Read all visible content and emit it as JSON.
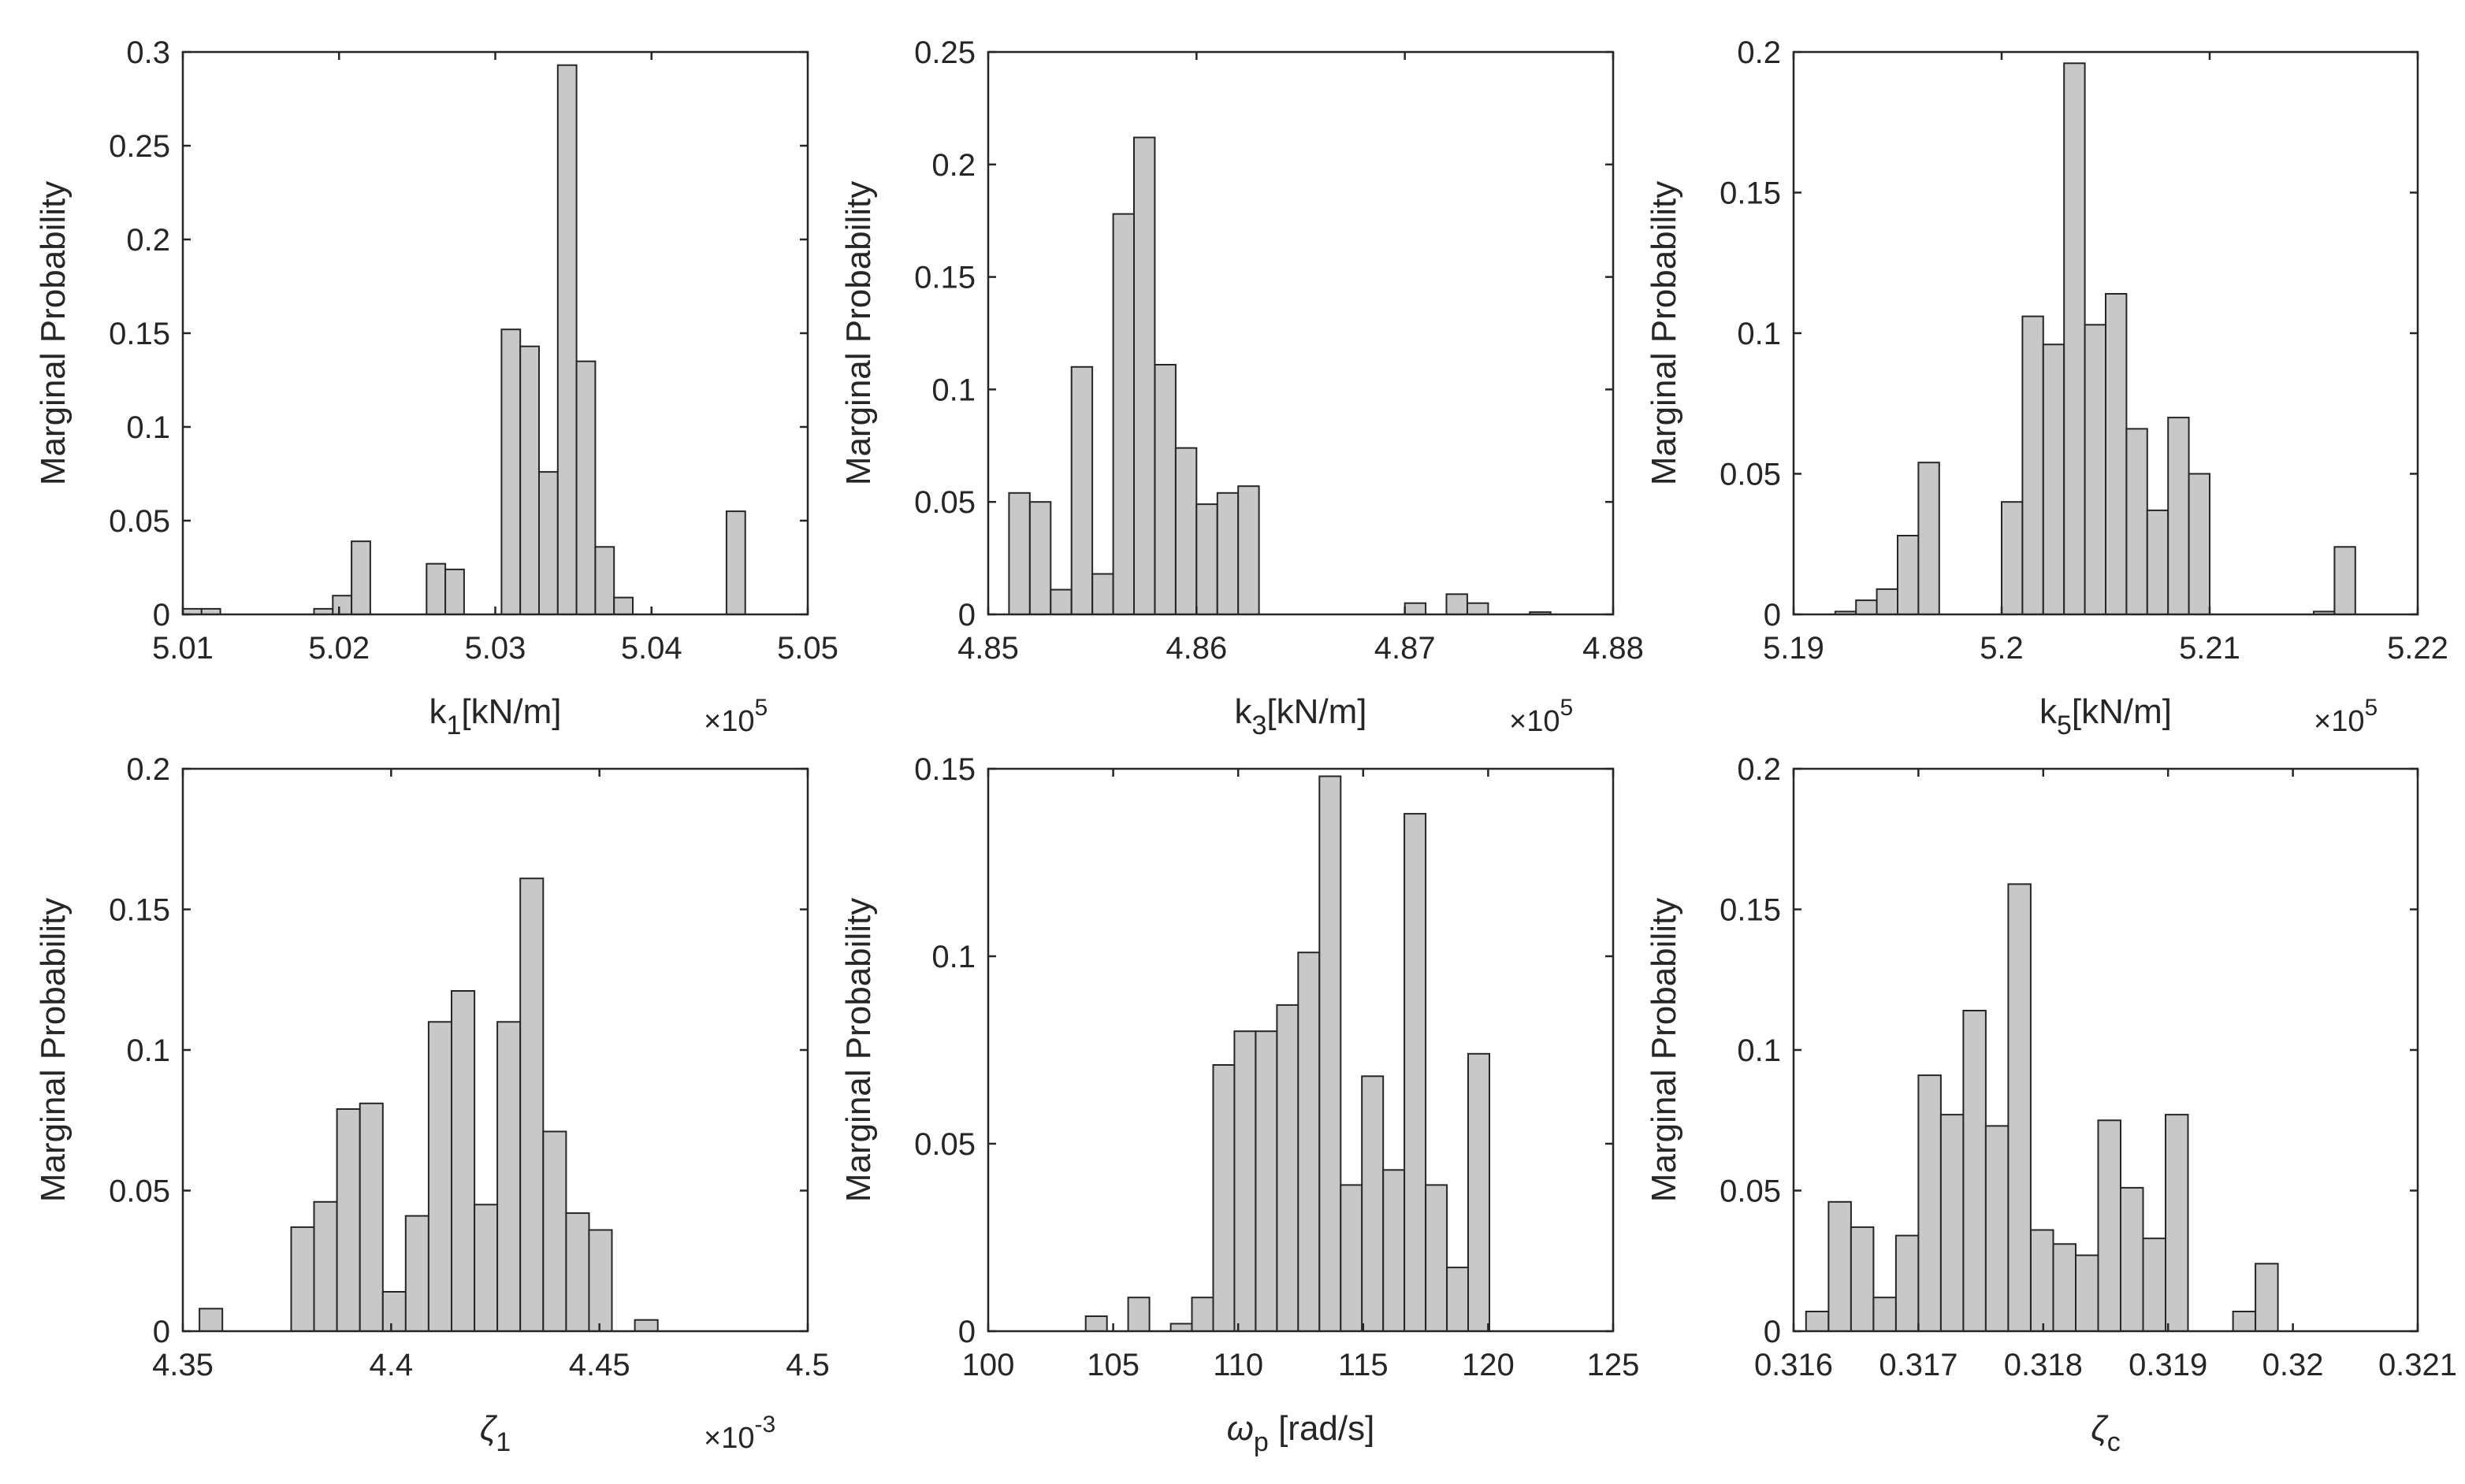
{
  "chart_data": [
    {
      "type": "bar",
      "ylabel": "Marginal Probability",
      "xlabel_main": "k",
      "xlabel_sub": "1",
      "xlabel_rest": "[kN/m]",
      "xlabel_italic": false,
      "multiplier_base": "×10",
      "multiplier_exp": "5",
      "xlim": [
        5.01,
        5.05
      ],
      "ylim": [
        0,
        0.3
      ],
      "xticks": [
        5.01,
        5.02,
        5.03,
        5.04,
        5.05
      ],
      "xtick_labels": [
        "5.01",
        "5.02",
        "5.03",
        "5.04",
        "5.05"
      ],
      "yticks": [
        0,
        0.05,
        0.1,
        0.15,
        0.2,
        0.25,
        0.3
      ],
      "ytick_labels": [
        "0",
        "0.05",
        "0.1",
        "0.15",
        "0.2",
        "0.25",
        "0.3"
      ],
      "bin_edges": [
        5.01,
        5.0112,
        5.0124,
        5.0136,
        5.0148,
        5.016,
        5.0172,
        5.0184,
        5.0196,
        5.0208,
        5.022,
        5.0232,
        5.0244,
        5.0256,
        5.0268,
        5.028,
        5.0292,
        5.0304,
        5.0316,
        5.0328,
        5.034,
        5.0352,
        5.0364,
        5.0376,
        5.0388,
        5.04,
        5.0412,
        5.0424,
        5.0436,
        5.0448,
        5.046
      ],
      "values": [
        0.003,
        0.003,
        0,
        0,
        0,
        0,
        0,
        0.003,
        0.01,
        0.039,
        0,
        0,
        0,
        0.027,
        0.024,
        0,
        0,
        0.152,
        0.143,
        0.076,
        0.293,
        0.135,
        0.036,
        0.009,
        0,
        0,
        0,
        0,
        0,
        0.055
      ]
    },
    {
      "type": "bar",
      "ylabel": "Marginal Probability",
      "xlabel_main": "k",
      "xlabel_sub": "3",
      "xlabel_rest": "[kN/m]",
      "xlabel_italic": false,
      "multiplier_base": "×10",
      "multiplier_exp": "5",
      "xlim": [
        4.85,
        4.88
      ],
      "ylim": [
        0,
        0.25
      ],
      "xticks": [
        4.85,
        4.86,
        4.87,
        4.88
      ],
      "xtick_labels": [
        "4.85",
        "4.86",
        "4.87",
        "4.88"
      ],
      "yticks": [
        0,
        0.05,
        0.1,
        0.15,
        0.2,
        0.25
      ],
      "ytick_labels": [
        "0",
        "0.05",
        "0.1",
        "0.15",
        "0.2",
        "0.25"
      ],
      "bin_edges": [
        4.851,
        4.852,
        4.853,
        4.854,
        4.855,
        4.856,
        4.857,
        4.858,
        4.859,
        4.86,
        4.861,
        4.862,
        4.863,
        4.864,
        4.865,
        4.866,
        4.867,
        4.868,
        4.869,
        4.87,
        4.871,
        4.872,
        4.873,
        4.874,
        4.875,
        4.876,
        4.877,
        4.878
      ],
      "values": [
        0.054,
        0.05,
        0.011,
        0.11,
        0.018,
        0.178,
        0.212,
        0.111,
        0.074,
        0.049,
        0.054,
        0.057,
        0,
        0,
        0,
        0,
        0,
        0,
        0,
        0.005,
        0,
        0.009,
        0.005,
        0,
        0,
        0.001,
        0
      ]
    },
    {
      "type": "bar",
      "ylabel": "Marginal Probability",
      "xlabel_main": "k",
      "xlabel_sub": "5",
      "xlabel_rest": "[kN/m]",
      "xlabel_italic": false,
      "multiplier_base": "×10",
      "multiplier_exp": "5",
      "xlim": [
        5.19,
        5.22
      ],
      "ylim": [
        0,
        0.2
      ],
      "xticks": [
        5.19,
        5.2,
        5.21,
        5.22
      ],
      "xtick_labels": [
        "5.19",
        "5.2",
        "5.21",
        "5.22"
      ],
      "yticks": [
        0,
        0.05,
        0.1,
        0.15,
        0.2
      ],
      "ytick_labels": [
        "0",
        "0.05",
        "0.1",
        "0.15",
        "0.2"
      ],
      "bin_edges": [
        5.192,
        5.193,
        5.194,
        5.195,
        5.196,
        5.197,
        5.198,
        5.199,
        5.2,
        5.201,
        5.202,
        5.203,
        5.204,
        5.205,
        5.206,
        5.207,
        5.208,
        5.209,
        5.21,
        5.211,
        5.212,
        5.213,
        5.214,
        5.215,
        5.216,
        5.217
      ],
      "values": [
        0.001,
        0.005,
        0.009,
        0.028,
        0.054,
        0,
        0,
        0,
        0.04,
        0.106,
        0.096,
        0.196,
        0.103,
        0.114,
        0.066,
        0.037,
        0.07,
        0.05,
        0,
        0,
        0,
        0,
        0,
        0.001,
        0.024
      ]
    },
    {
      "type": "bar",
      "ylabel": "Marginal Probability",
      "xlabel_main": "ζ",
      "xlabel_sub": "1",
      "xlabel_rest": "",
      "xlabel_italic": true,
      "multiplier_base": "×10",
      "multiplier_exp": "-3",
      "xlim": [
        4.35,
        4.5
      ],
      "ylim": [
        0,
        0.2
      ],
      "xticks": [
        4.35,
        4.4,
        4.45,
        4.5
      ],
      "xtick_labels": [
        "4.35",
        "4.4",
        "4.45",
        "4.5"
      ],
      "yticks": [
        0,
        0.05,
        0.1,
        0.15,
        0.2
      ],
      "ytick_labels": [
        "0",
        "0.05",
        "0.1",
        "0.15",
        "0.2"
      ],
      "bin_edges": [
        4.354,
        4.3595,
        4.365,
        4.3705,
        4.376,
        4.3815,
        4.387,
        4.3925,
        4.398,
        4.4035,
        4.409,
        4.4145,
        4.42,
        4.4255,
        4.431,
        4.4365,
        4.442,
        4.4475,
        4.453,
        4.4585,
        4.464
      ],
      "values": [
        0.008,
        0,
        0,
        0,
        0.037,
        0.046,
        0.079,
        0.081,
        0.014,
        0.041,
        0.11,
        0.121,
        0.045,
        0.11,
        0.161,
        0.071,
        0.042,
        0.036,
        0,
        0.004
      ]
    },
    {
      "type": "bar",
      "ylabel": "Marginal Probability",
      "xlabel_main": "ω",
      "xlabel_sub": "p",
      "xlabel_rest": " [rad/s]",
      "xlabel_italic": true,
      "multiplier_base": "",
      "multiplier_exp": "",
      "xlim": [
        100,
        125
      ],
      "ylim": [
        0,
        0.15
      ],
      "xticks": [
        100,
        105,
        110,
        115,
        120,
        125
      ],
      "xtick_labels": [
        "100",
        "105",
        "110",
        "115",
        "120",
        "125"
      ],
      "yticks": [
        0,
        0.05,
        0.1,
        0.15
      ],
      "ytick_labels": [
        "0",
        "0.05",
        "0.1",
        "0.15"
      ],
      "bin_edges": [
        103.9,
        104.75,
        105.6,
        106.45,
        107.3,
        108.15,
        109.0,
        109.85,
        110.7,
        111.55,
        112.4,
        113.25,
        114.1,
        114.95,
        115.8,
        116.65,
        117.5,
        118.35,
        119.2,
        120.05
      ],
      "values": [
        0.004,
        0,
        0.009,
        0,
        0.002,
        0.009,
        0.071,
        0.08,
        0.08,
        0.087,
        0.101,
        0.148,
        0.039,
        0.068,
        0.043,
        0.138,
        0.039,
        0.017,
        0.074
      ]
    },
    {
      "type": "bar",
      "ylabel": "Marginal Probability",
      "xlabel_main": "ζ",
      "xlabel_sub": "c",
      "xlabel_rest": "",
      "xlabel_italic": true,
      "multiplier_base": "",
      "multiplier_exp": "",
      "xlim": [
        0.316,
        0.321
      ],
      "ylim": [
        0,
        0.2
      ],
      "xticks": [
        0.316,
        0.317,
        0.318,
        0.319,
        0.32,
        0.321
      ],
      "xtick_labels": [
        "0.316",
        "0.317",
        "0.318",
        "0.319",
        "0.32",
        "0.321"
      ],
      "yticks": [
        0,
        0.05,
        0.1,
        0.15,
        0.2
      ],
      "ytick_labels": [
        "0",
        "0.05",
        "0.1",
        "0.15",
        "0.2"
      ],
      "bin_edges": [
        0.3161,
        0.31628,
        0.31646,
        0.31664,
        0.31682,
        0.317,
        0.31718,
        0.31736,
        0.31754,
        0.31772,
        0.3179,
        0.31808,
        0.31826,
        0.31844,
        0.31862,
        0.3188,
        0.31898,
        0.31916,
        0.31934,
        0.31952,
        0.3197,
        0.31988,
        0.32006,
        0.32024
      ],
      "values": [
        0.007,
        0.046,
        0.037,
        0.012,
        0.034,
        0.091,
        0.077,
        0.114,
        0.073,
        0.159,
        0.036,
        0.031,
        0.027,
        0.075,
        0.051,
        0.033,
        0.077,
        0,
        0,
        0.007,
        0.024,
        0,
        0
      ]
    }
  ]
}
